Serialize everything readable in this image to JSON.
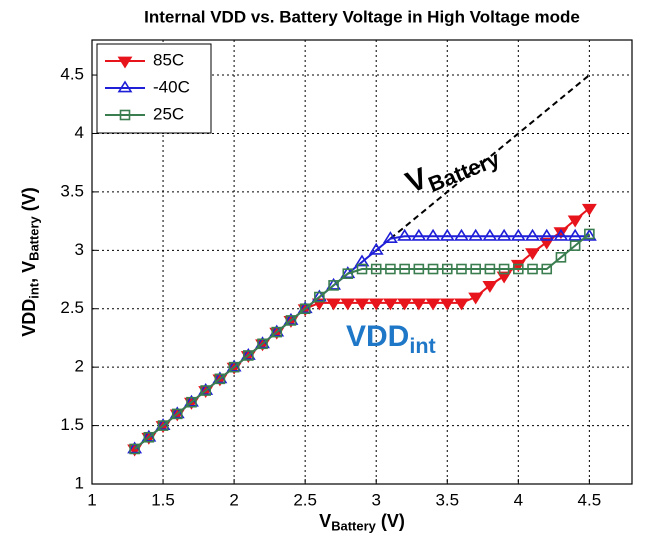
{
  "chart_data": {
    "type": "line",
    "title": "Internal VDD vs. Battery Voltage in High Voltage mode",
    "x_label": [
      "V",
      "Battery",
      " (V)"
    ],
    "y_label": [
      "VDD",
      "int",
      ", V",
      "Battery",
      " (V)"
    ],
    "annotations": [
      {
        "parts": [
          "V",
          "Battery"
        ],
        "color": "#000000"
      },
      {
        "parts": [
          "VDD",
          "int"
        ],
        "color": "#1f77c8"
      }
    ],
    "xlim": [
      1,
      4.8
    ],
    "ylim": [
      1,
      4.8
    ],
    "xticks": [
      1,
      1.5,
      2,
      2.5,
      3,
      3.5,
      4,
      4.5
    ],
    "yticks": [
      1,
      1.5,
      2,
      2.5,
      3,
      3.5,
      4,
      4.5
    ],
    "grid": true,
    "legend": "upper left",
    "x": [
      1.3,
      1.4,
      1.5,
      1.6,
      1.7,
      1.8,
      1.9,
      2.0,
      2.1,
      2.2,
      2.3,
      2.4,
      2.5,
      2.6,
      2.7,
      2.8,
      2.9,
      3.0,
      3.1,
      3.2,
      3.3,
      3.4,
      3.5,
      3.6,
      3.7,
      3.8,
      3.9,
      4.0,
      4.1,
      4.2,
      4.3,
      4.4,
      4.5
    ],
    "series": [
      {
        "name": "85C",
        "color": "#e8141c",
        "marker": "triangle-down",
        "filled": true,
        "values": [
          1.3,
          1.4,
          1.5,
          1.6,
          1.7,
          1.8,
          1.9,
          2.0,
          2.1,
          2.2,
          2.3,
          2.4,
          2.5,
          2.55,
          2.55,
          2.55,
          2.55,
          2.55,
          2.55,
          2.55,
          2.55,
          2.55,
          2.55,
          2.55,
          2.6,
          2.7,
          2.78,
          2.88,
          2.98,
          3.07,
          3.16,
          3.26,
          3.36
        ]
      },
      {
        "name": "-40C",
        "color": "#1f1fd8",
        "marker": "triangle-up",
        "filled": false,
        "values": [
          1.3,
          1.4,
          1.5,
          1.6,
          1.7,
          1.8,
          1.9,
          2.0,
          2.1,
          2.2,
          2.3,
          2.4,
          2.5,
          2.6,
          2.7,
          2.8,
          2.9,
          3.0,
          3.1,
          3.12,
          3.12,
          3.12,
          3.12,
          3.12,
          3.12,
          3.12,
          3.12,
          3.12,
          3.12,
          3.12,
          3.12,
          3.12,
          3.12
        ]
      },
      {
        "name": "25C",
        "color": "#3a7d4f",
        "marker": "square",
        "filled": false,
        "values": [
          1.3,
          1.4,
          1.5,
          1.6,
          1.7,
          1.8,
          1.9,
          2.0,
          2.1,
          2.2,
          2.3,
          2.4,
          2.5,
          2.6,
          2.7,
          2.8,
          2.84,
          2.84,
          2.84,
          2.84,
          2.84,
          2.84,
          2.84,
          2.84,
          2.84,
          2.84,
          2.84,
          2.84,
          2.84,
          2.84,
          2.94,
          3.04,
          3.14
        ]
      }
    ],
    "reference_line": {
      "x": [
        3.1,
        4.5
      ],
      "values": [
        3.1,
        4.5
      ],
      "color": "#000000",
      "dashed": true
    }
  }
}
